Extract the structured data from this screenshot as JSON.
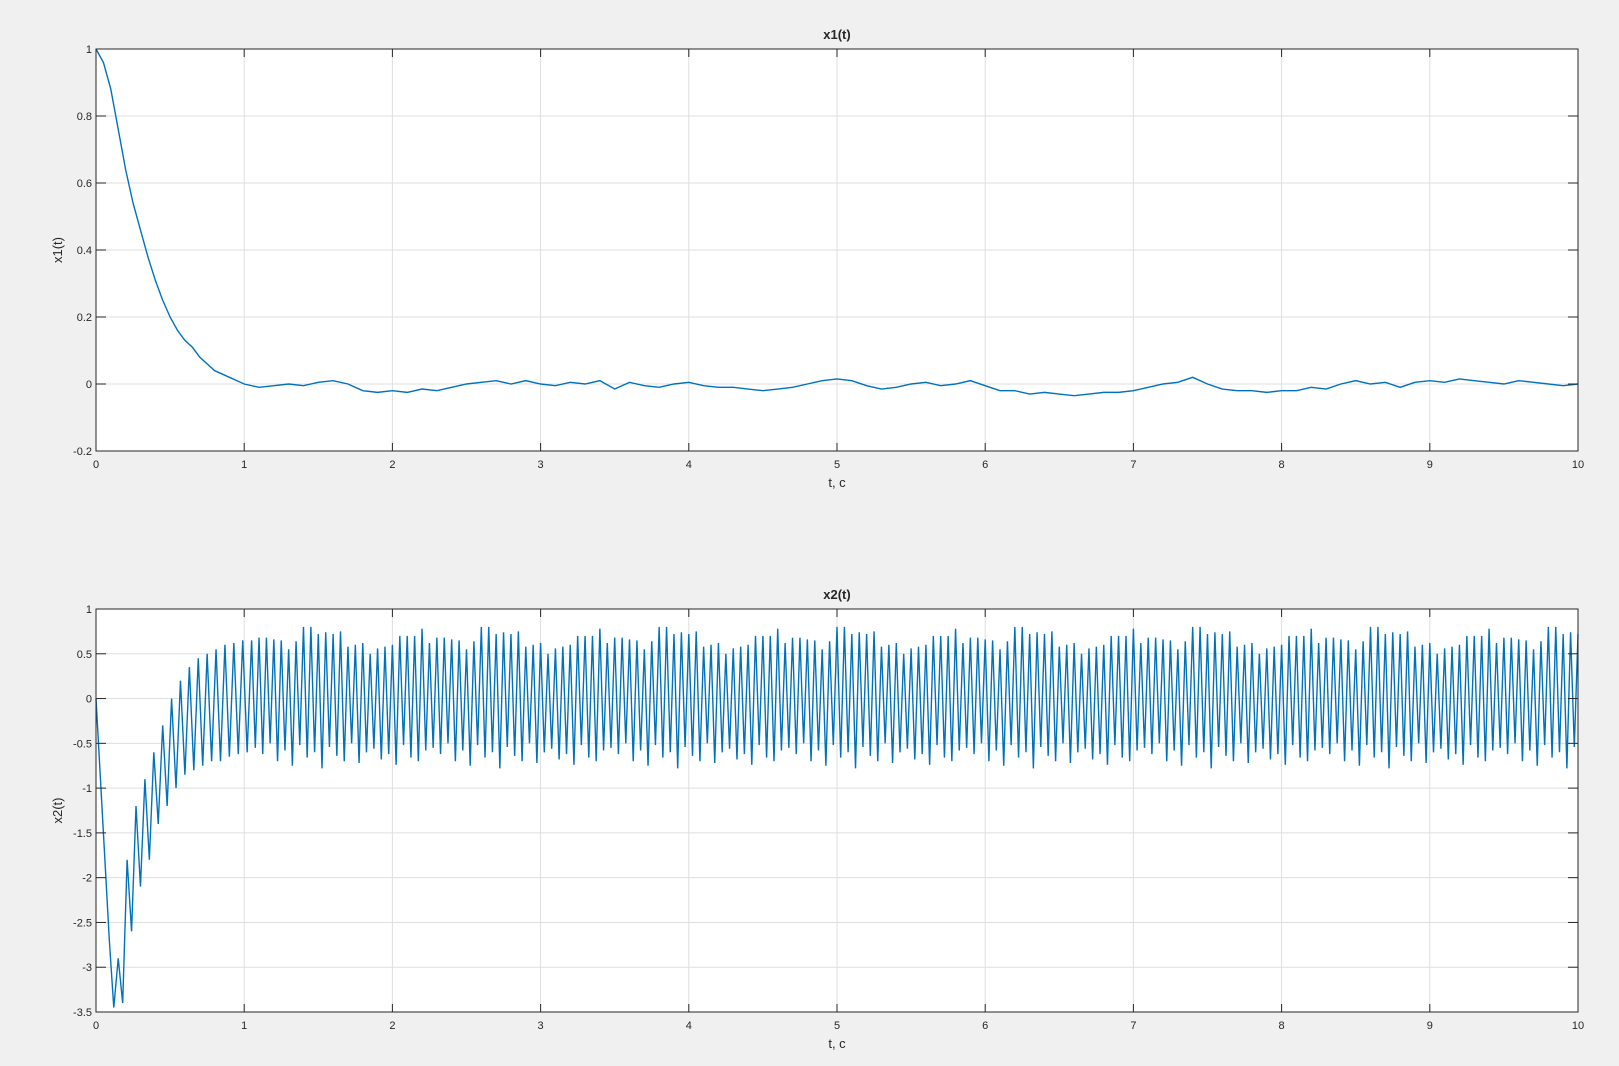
{
  "chart_data": [
    {
      "type": "line",
      "title": "x1(t)",
      "xlabel": "t, c",
      "ylabel": "x1(t)",
      "xlim": [
        0,
        10
      ],
      "ylim": [
        -0.2,
        1
      ],
      "xticks": [
        "0",
        "1",
        "2",
        "3",
        "4",
        "5",
        "6",
        "7",
        "8",
        "9",
        "10"
      ],
      "yticks": [
        "-0.2",
        "0",
        "0.2",
        "0.4",
        "0.6",
        "0.8",
        "1"
      ],
      "grid": true,
      "color": "#0072bd",
      "series": [
        {
          "x": [
            0,
            0.05,
            0.1,
            0.15,
            0.2,
            0.25,
            0.3,
            0.35,
            0.4,
            0.45,
            0.5,
            0.55,
            0.6,
            0.65,
            0.7,
            0.75,
            0.8,
            0.85,
            0.9,
            0.95,
            1.0,
            1.1,
            1.2,
            1.3,
            1.4,
            1.5,
            1.6,
            1.7,
            1.8,
            1.9,
            2.0,
            2.1,
            2.2,
            2.3,
            2.4,
            2.5,
            2.6,
            2.7,
            2.8,
            2.9,
            3.0,
            3.1,
            3.2,
            3.3,
            3.4,
            3.5,
            3.6,
            3.7,
            3.8,
            3.9,
            4.0,
            4.1,
            4.2,
            4.3,
            4.4,
            4.5,
            4.6,
            4.7,
            4.8,
            4.9,
            5.0,
            5.1,
            5.2,
            5.3,
            5.4,
            5.5,
            5.6,
            5.7,
            5.8,
            5.9,
            6.0,
            6.1,
            6.2,
            6.3,
            6.4,
            6.5,
            6.6,
            6.7,
            6.8,
            6.9,
            7.0,
            7.1,
            7.2,
            7.3,
            7.4,
            7.5,
            7.6,
            7.7,
            7.8,
            7.9,
            8.0,
            8.1,
            8.2,
            8.3,
            8.4,
            8.5,
            8.6,
            8.7,
            8.8,
            8.9,
            9.0,
            9.1,
            9.2,
            9.3,
            9.4,
            9.5,
            9.6,
            9.7,
            9.8,
            9.9,
            10.0
          ],
          "y": [
            1.0,
            0.96,
            0.88,
            0.76,
            0.64,
            0.54,
            0.46,
            0.38,
            0.31,
            0.25,
            0.2,
            0.16,
            0.13,
            0.11,
            0.08,
            0.06,
            0.04,
            0.03,
            0.02,
            0.01,
            0.0,
            -0.01,
            -0.005,
            0.0,
            -0.005,
            0.005,
            0.01,
            0.0,
            -0.02,
            -0.025,
            -0.02,
            -0.025,
            -0.015,
            -0.02,
            -0.01,
            0.0,
            0.005,
            0.01,
            0.0,
            0.01,
            0.0,
            -0.005,
            0.005,
            0.0,
            0.01,
            -0.015,
            0.005,
            -0.005,
            -0.01,
            0.0,
            0.005,
            -0.005,
            -0.01,
            -0.01,
            -0.015,
            -0.02,
            -0.015,
            -0.01,
            0.0,
            0.01,
            0.015,
            0.01,
            -0.005,
            -0.015,
            -0.01,
            0.0,
            0.005,
            -0.005,
            0.0,
            0.01,
            -0.005,
            -0.02,
            -0.02,
            -0.03,
            -0.025,
            -0.03,
            -0.035,
            -0.03,
            -0.025,
            -0.025,
            -0.02,
            -0.01,
            0.0,
            0.005,
            0.02,
            0.0,
            -0.015,
            -0.02,
            -0.02,
            -0.025,
            -0.02,
            -0.02,
            -0.01,
            -0.015,
            0.0,
            0.01,
            0.0,
            0.005,
            -0.01,
            0.005,
            0.01,
            0.005,
            0.015,
            0.01,
            0.005,
            0.0,
            0.01,
            0.005,
            0.0,
            -0.005,
            0.0
          ]
        }
      ]
    },
    {
      "type": "line",
      "title": "x2(t)",
      "xlabel": "t, c",
      "ylabel": "x2(t)",
      "xlim": [
        0,
        10
      ],
      "ylim": [
        -3.5,
        1
      ],
      "xticks": [
        "0",
        "1",
        "2",
        "3",
        "4",
        "5",
        "6",
        "7",
        "8",
        "9",
        "10"
      ],
      "yticks": [
        "-3.5",
        "-3",
        "-2.5",
        "-2",
        "-1.5",
        "-1",
        "-0.5",
        "0",
        "0.5",
        "1"
      ],
      "grid": true,
      "color": "#0072bd",
      "series": [
        {
          "x": [
            0,
            0.03,
            0.06,
            0.09,
            0.12,
            0.15,
            0.18,
            0.21,
            0.24,
            0.27,
            0.3,
            0.33,
            0.36,
            0.39,
            0.42,
            0.45,
            0.48,
            0.51,
            0.54,
            0.57,
            0.6,
            0.63,
            0.66,
            0.69,
            0.72,
            0.75,
            0.78,
            0.81,
            0.84,
            0.87,
            0.9,
            0.93,
            0.96,
            0.99,
            1.02,
            1.05
          ],
          "y": [
            0.0,
            -0.9,
            -1.8,
            -2.7,
            -3.45,
            -2.9,
            -3.4,
            -1.8,
            -2.6,
            -1.2,
            -2.1,
            -0.9,
            -1.8,
            -0.6,
            -1.4,
            -0.3,
            -1.2,
            0.0,
            -1.0,
            0.2,
            -0.85,
            0.35,
            -0.8,
            0.45,
            -0.75,
            0.5,
            -0.7,
            0.55,
            -0.7,
            0.6,
            -0.65,
            0.62,
            -0.62,
            0.65,
            -0.6,
            0.65
          ]
        }
      ],
      "steady_state": {
        "x_start": 1.05,
        "x_end": 10,
        "period": 0.05,
        "peak_values": [
          0.65,
          0.72,
          0.58,
          0.68,
          0.8,
          0.62,
          0.7,
          0.55,
          0.75,
          0.6,
          0.68,
          0.72,
          0.5,
          0.78,
          0.64,
          0.58,
          0.7,
          0.66,
          0.74,
          0.56,
          0.62,
          0.8,
          0.6,
          0.7
        ],
        "trough_values": [
          -0.55,
          -0.62,
          -0.5,
          -0.7,
          -0.58,
          -0.75,
          -0.52,
          -0.66,
          -0.6,
          -0.78,
          -0.54,
          -0.64,
          -0.7,
          -0.5,
          -0.72,
          -0.6,
          -0.56,
          -0.68,
          -0.62,
          -0.74,
          -0.52,
          -0.66,
          -0.7,
          -0.58
        ]
      }
    }
  ]
}
